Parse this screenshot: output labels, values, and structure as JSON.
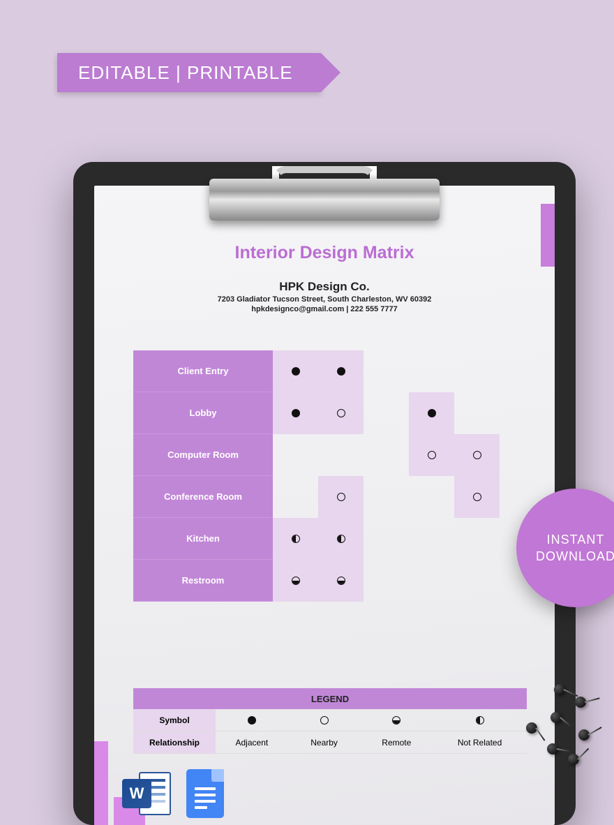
{
  "ribbon": {
    "text": "EDITABLE | PRINTABLE",
    "bg": "#BB7CD2"
  },
  "badge": {
    "line1": "INSTANT",
    "line2": "DOWNLOAD",
    "bg": "#C077D5"
  },
  "document": {
    "title": "Interior Design Matrix",
    "title_color": "#BB6DD3",
    "company": "HPK Design Co.",
    "address": "7203 Gladiator Tucson Street, South Charleston, WV 60392",
    "contact": "hpkdesignco@gmail.com | 222 555 7777"
  },
  "matrix": {
    "label_bg": "#C187D7",
    "shaded_bg": "#E7D6ED",
    "rooms": [
      "Client Entry",
      "Lobby",
      "Computer Room",
      "Conference Room",
      "Kitchen",
      "Restroom"
    ],
    "grid": [
      [
        "adjacent",
        "adjacent",
        "",
        "",
        ""
      ],
      [
        "adjacent",
        "nearby",
        "",
        "adjacent",
        ""
      ],
      [
        "",
        "",
        "",
        "nearby",
        "nearby"
      ],
      [
        "",
        "nearby",
        "",
        "",
        "nearby"
      ],
      [
        "notrelated",
        "notrelated",
        "",
        "",
        ""
      ],
      [
        "remote",
        "remote",
        "",
        "",
        ""
      ]
    ],
    "shading": [
      [
        "s",
        "s",
        "",
        "",
        ""
      ],
      [
        "s",
        "s",
        "",
        "s",
        ""
      ],
      [
        "",
        "",
        "",
        "s",
        "s"
      ],
      [
        "",
        "s",
        "",
        "",
        "s"
      ],
      [
        "s",
        "s",
        "",
        "",
        ""
      ],
      [
        "s",
        "s",
        "",
        "",
        ""
      ]
    ]
  },
  "legend": {
    "title": "LEGEND",
    "row1_label": "Symbol",
    "row2_label": "Relationship",
    "symbols": [
      "adjacent",
      "nearby",
      "remote",
      "notrelated"
    ],
    "labels": [
      "Adjacent",
      "Nearby",
      "Remote",
      "Not Related"
    ]
  },
  "icons": {
    "word_letter": "W"
  }
}
